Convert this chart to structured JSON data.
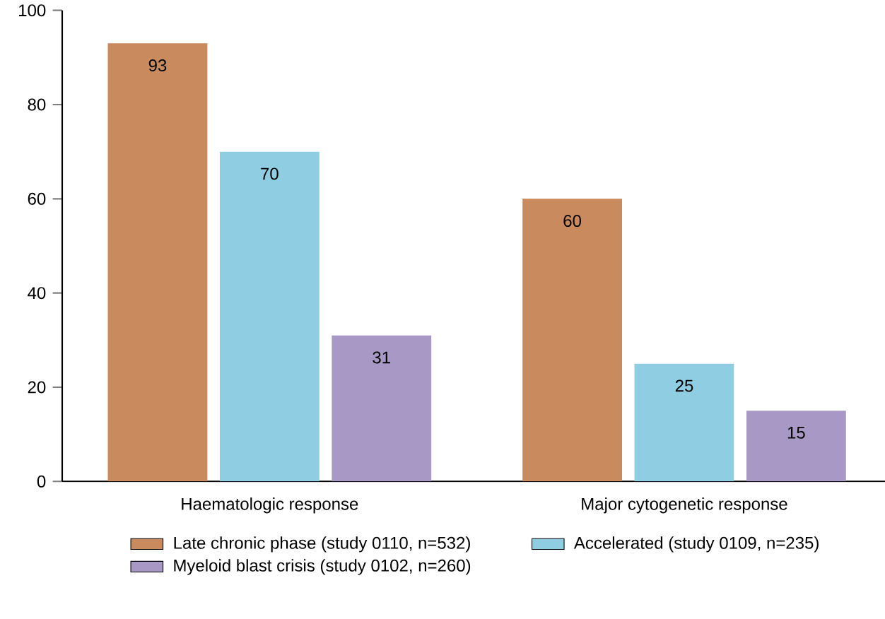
{
  "chart_data": {
    "type": "bar",
    "categories": [
      "Haematologic response",
      "Major cytogenetic response"
    ],
    "series": [
      {
        "name": "Late chronic phase (study 0110, n=532)",
        "color": "#c98a5e",
        "values": [
          93,
          60
        ]
      },
      {
        "name": "Accelerated (study 0109, n=235)",
        "color": "#8fcde2",
        "values": [
          70,
          25
        ]
      },
      {
        "name": "Myeloid blast crisis (study 0102, n=260)",
        "color": "#a898c6",
        "values": [
          31,
          15
        ]
      }
    ],
    "ylim": [
      0,
      100
    ],
    "yticks": [
      0,
      20,
      40,
      60,
      80,
      100
    ],
    "data_labels": true,
    "legend": "bottom",
    "grid": false
  }
}
